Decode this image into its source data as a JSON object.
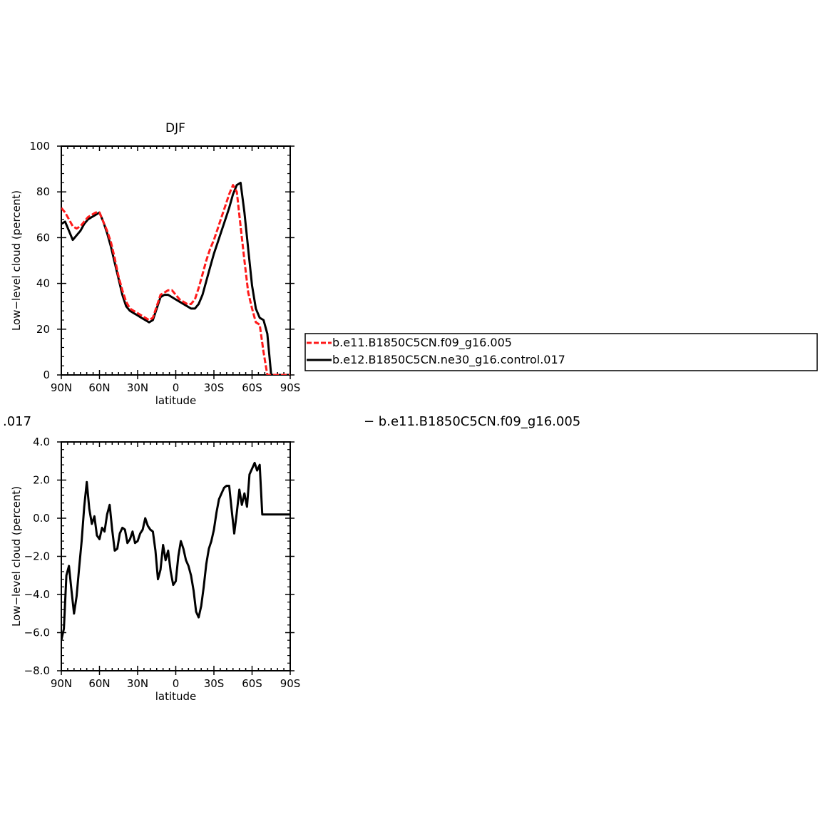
{
  "figure": {
    "title": "DJF",
    "diff_label_left": ".017",
    "diff_label_right": "− b.e11.B1850C5CN.f09_g16.005"
  },
  "chart_data": [
    {
      "type": "line",
      "title": "DJF",
      "xlabel": "latitude",
      "ylabel": "Low−level cloud (percent)",
      "xticks": [
        "90N",
        "60N",
        "30N",
        "0",
        "30S",
        "60S",
        "90S"
      ],
      "yticks": [
        "0",
        "20",
        "40",
        "60",
        "80",
        "100"
      ],
      "xlim": [
        90,
        -90
      ],
      "ylim": [
        0,
        100
      ],
      "legend_position": "right",
      "series": [
        {
          "name": "b.e11.B1850C5CN.f09_g16.005",
          "color": "#ff1a1a",
          "dash": "dashed",
          "x": [
            90,
            87,
            84,
            81,
            78,
            75,
            72,
            69,
            66,
            63,
            60,
            57,
            54,
            51,
            48,
            45,
            42,
            39,
            36,
            33,
            30,
            27,
            24,
            21,
            18,
            15,
            12,
            9,
            6,
            3,
            0,
            -3,
            -6,
            -9,
            -12,
            -15,
            -18,
            -21,
            -24,
            -27,
            -30,
            -33,
            -36,
            -39,
            -42,
            -45,
            -48,
            -51,
            -54,
            -57,
            -60,
            -63,
            -66,
            -69,
            -72,
            -75,
            -78,
            -81,
            -84,
            -87,
            -90
          ],
          "y": [
            73,
            71,
            68,
            65,
            64,
            65,
            67,
            69,
            70,
            71,
            71,
            67,
            63,
            58,
            51,
            43,
            37,
            32,
            29,
            28,
            27,
            26,
            25,
            24,
            25,
            30,
            35,
            36,
            37,
            37,
            35,
            33,
            32,
            31,
            31,
            33,
            38,
            44,
            50,
            55,
            59,
            64,
            69,
            74,
            79,
            83,
            80,
            65,
            50,
            36,
            29,
            23,
            22,
            10,
            0,
            0,
            0,
            0,
            0,
            0,
            0
          ]
        },
        {
          "name": "b.e12.B1850C5CN.ne30_g16.control.017",
          "color": "#000000",
          "dash": "solid",
          "x": [
            90,
            87,
            84,
            81,
            78,
            75,
            72,
            69,
            66,
            63,
            60,
            57,
            54,
            51,
            48,
            45,
            42,
            39,
            36,
            33,
            30,
            27,
            24,
            21,
            18,
            15,
            12,
            9,
            6,
            3,
            0,
            -3,
            -6,
            -9,
            -12,
            -15,
            -18,
            -21,
            -24,
            -27,
            -30,
            -33,
            -36,
            -39,
            -42,
            -45,
            -48,
            -51,
            -54,
            -57,
            -60,
            -63,
            -66,
            -69,
            -72,
            -75,
            -78,
            -81,
            -84,
            -87,
            -90
          ],
          "y": [
            66,
            67,
            63,
            59,
            61,
            63,
            66,
            68,
            69,
            70,
            71,
            67,
            62,
            56,
            49,
            42,
            35,
            30,
            28,
            27,
            26,
            25,
            24,
            23,
            24,
            29,
            34,
            35,
            35,
            34,
            33,
            32,
            31,
            30,
            29,
            29,
            31,
            35,
            41,
            47,
            53,
            58,
            63,
            68,
            73,
            79,
            83,
            84,
            71,
            55,
            39,
            29,
            25,
            24,
            18,
            0,
            0,
            0,
            0,
            0,
            0
          ]
        }
      ]
    },
    {
      "type": "line",
      "title": "",
      "xlabel": "latitude",
      "ylabel": "Low−level cloud (percent)",
      "xticks": [
        "90N",
        "60N",
        "30N",
        "0",
        "30S",
        "60S",
        "90S"
      ],
      "yticks": [
        "−8.0",
        "−6.0",
        "−4.0",
        "−2.0",
        "0.0",
        "2.0",
        "4.0"
      ],
      "xlim": [
        90,
        -90
      ],
      "ylim": [
        -8,
        4
      ],
      "series": [
        {
          "color": "#000000",
          "x": [
            90,
            88,
            86,
            84,
            82,
            80,
            78,
            76,
            74,
            72,
            70,
            68,
            66,
            64,
            62,
            60,
            58,
            56,
            54,
            52,
            50,
            48,
            46,
            44,
            42,
            40,
            38,
            36,
            34,
            32,
            30,
            28,
            26,
            24,
            22,
            20,
            18,
            16,
            14,
            12,
            10,
            8,
            6,
            4,
            2,
            0,
            -2,
            -4,
            -6,
            -8,
            -10,
            -12,
            -14,
            -16,
            -18,
            -20,
            -22,
            -24,
            -26,
            -28,
            -30,
            -32,
            -34,
            -36,
            -38,
            -40,
            -42,
            -44,
            -46,
            -48,
            -50,
            -52,
            -54,
            -56,
            -58,
            -60,
            -62,
            -64,
            -66,
            -68,
            -70,
            -72,
            -74,
            -76,
            -78,
            -80,
            -82,
            -84,
            -86,
            -88,
            -90
          ],
          "y": [
            -6.4,
            -5.8,
            -3.0,
            -2.5,
            -3.8,
            -5.0,
            -4.1,
            -2.6,
            -1.2,
            0.6,
            1.9,
            0.5,
            -0.3,
            0.1,
            -0.9,
            -1.1,
            -0.5,
            -0.7,
            0.2,
            0.7,
            -0.6,
            -1.7,
            -1.6,
            -0.8,
            -0.5,
            -0.6,
            -1.3,
            -1.1,
            -0.7,
            -1.3,
            -1.2,
            -0.8,
            -0.6,
            0.0,
            -0.4,
            -0.6,
            -0.7,
            -1.7,
            -3.2,
            -2.7,
            -1.4,
            -2.2,
            -1.7,
            -2.8,
            -3.5,
            -3.3,
            -2.0,
            -1.2,
            -1.6,
            -2.2,
            -2.5,
            -3.0,
            -3.8,
            -4.9,
            -5.2,
            -4.6,
            -3.6,
            -2.4,
            -1.6,
            -1.2,
            -0.6,
            0.3,
            1.0,
            1.3,
            1.6,
            1.7,
            1.7,
            0.4,
            -0.8,
            0.3,
            1.5,
            0.7,
            1.3,
            0.6,
            2.3,
            2.6,
            2.9,
            2.5,
            2.8,
            0.2,
            0.2,
            0.2,
            0.2,
            0.2,
            0.2,
            0.2,
            0.2,
            0.2,
            0.2,
            0.2,
            0.2
          ]
        }
      ]
    }
  ]
}
